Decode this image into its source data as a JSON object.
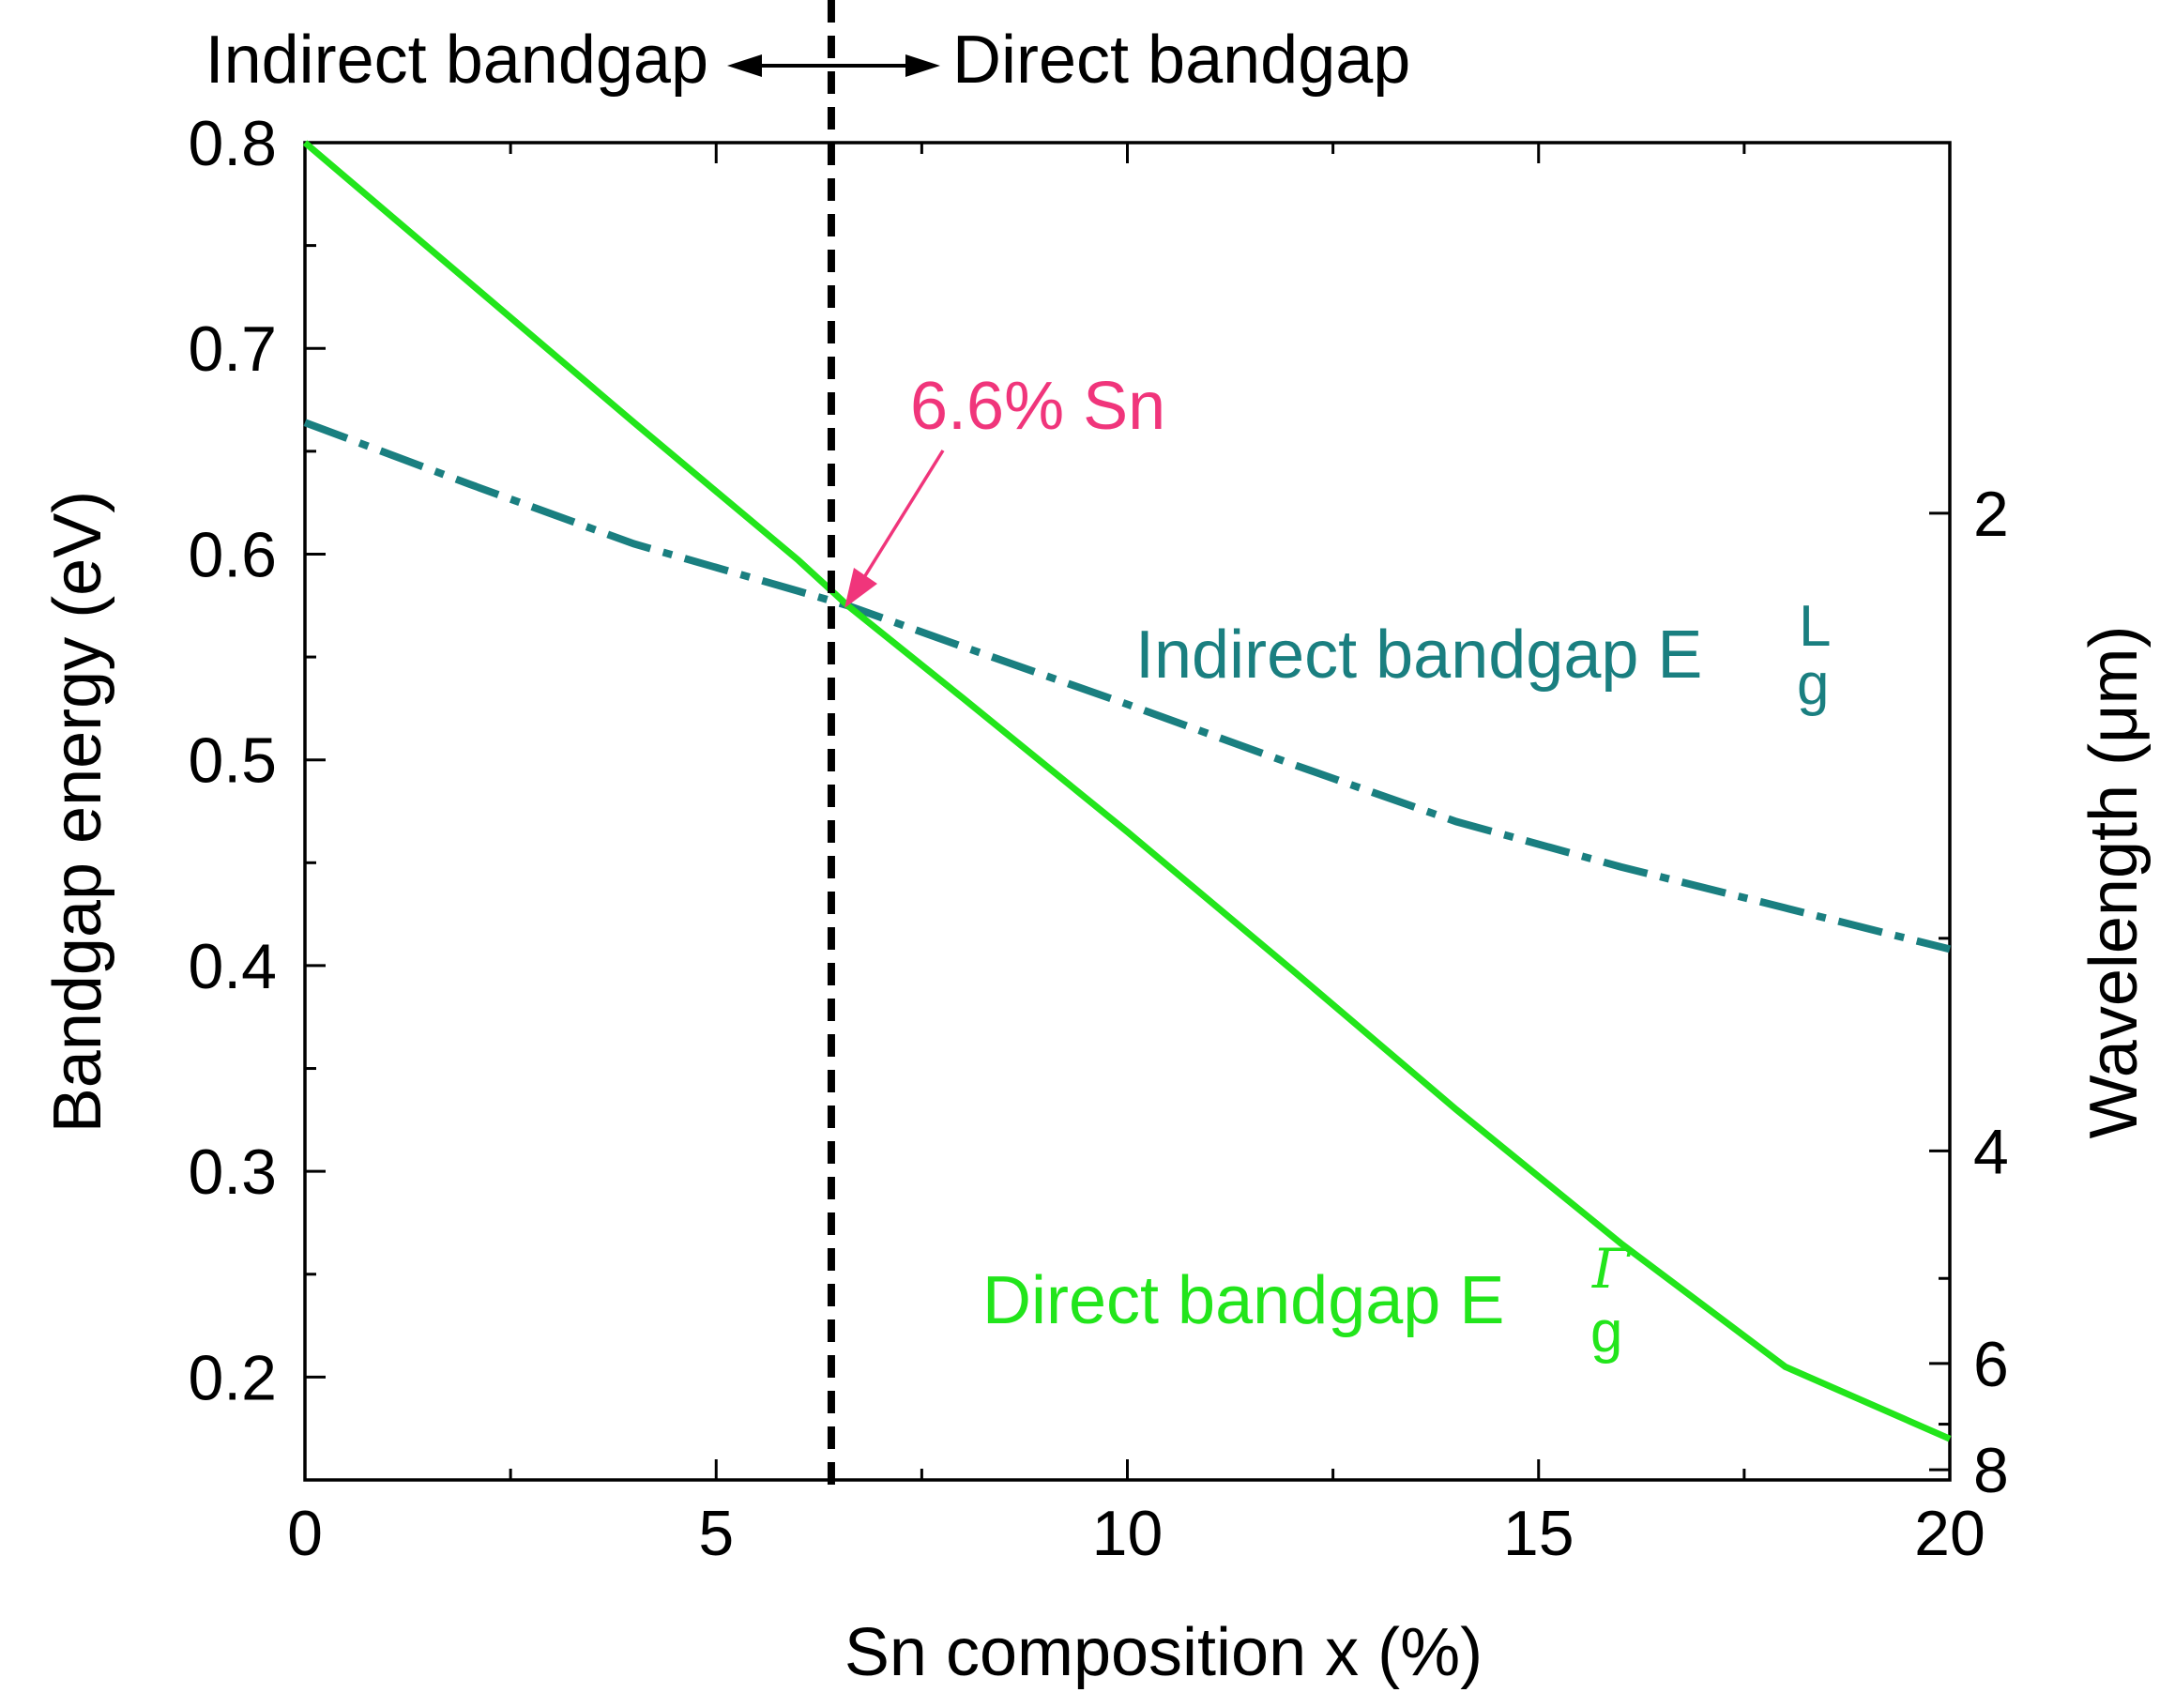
{
  "chart_data": {
    "type": "line",
    "title": "",
    "xlabel": "Sn composition x (%)",
    "ylabel": "Bandgap energy (eV)",
    "y2label": "Wavelength (μm)",
    "xlim": [
      0,
      20
    ],
    "ylim": [
      0.15,
      0.8
    ],
    "x_ticks": [
      0,
      5,
      10,
      15,
      20
    ],
    "x_tick_labels": [
      "0",
      "5",
      "10",
      "15",
      "20"
    ],
    "y_ticks": [
      0.2,
      0.3,
      0.4,
      0.5,
      0.6,
      0.7,
      0.8
    ],
    "y_tick_labels": [
      "0.2",
      "0.3",
      "0.4",
      "0.5",
      "0.6",
      "0.7",
      "0.8"
    ],
    "y2_ticks": [
      2,
      4,
      6,
      8
    ],
    "y2_tick_labels": [
      "2",
      "4",
      "6",
      "8"
    ],
    "series": [
      {
        "name": "Direct bandgap E_g^Γ",
        "style": "solid",
        "color": "#22e51b",
        "x": [
          0,
          2,
          4,
          6,
          6.6,
          8,
          10,
          12,
          14,
          16,
          18,
          20
        ],
        "y": [
          0.8,
          0.732,
          0.664,
          0.597,
          0.575,
          0.53,
          0.465,
          0.398,
          0.33,
          0.265,
          0.205,
          0.17
        ]
      },
      {
        "name": "Indirect bandgap E_g^L",
        "style": "dash-dot",
        "color": "#1a7f80",
        "x": [
          0,
          2,
          4,
          6,
          6.6,
          8,
          10,
          12,
          14,
          16,
          18,
          20
        ],
        "y": [
          0.664,
          0.634,
          0.605,
          0.582,
          0.575,
          0.555,
          0.527,
          0.498,
          0.47,
          0.448,
          0.428,
          0.408
        ]
      }
    ],
    "annotations": {
      "crossover": {
        "text": "6.6% Sn",
        "x": 6.4,
        "y": 0.575,
        "color": "#f0357b"
      },
      "divider_x": 6.4,
      "indirect_label": {
        "main": "Indirect bandgap E",
        "sub": "g",
        "sup": "L"
      },
      "direct_label": {
        "main": "Direct bandgap E",
        "sub": "g",
        "sup": "Γ"
      },
      "top_left": "Indirect bandgap",
      "top_right": "Direct bandgap"
    }
  }
}
